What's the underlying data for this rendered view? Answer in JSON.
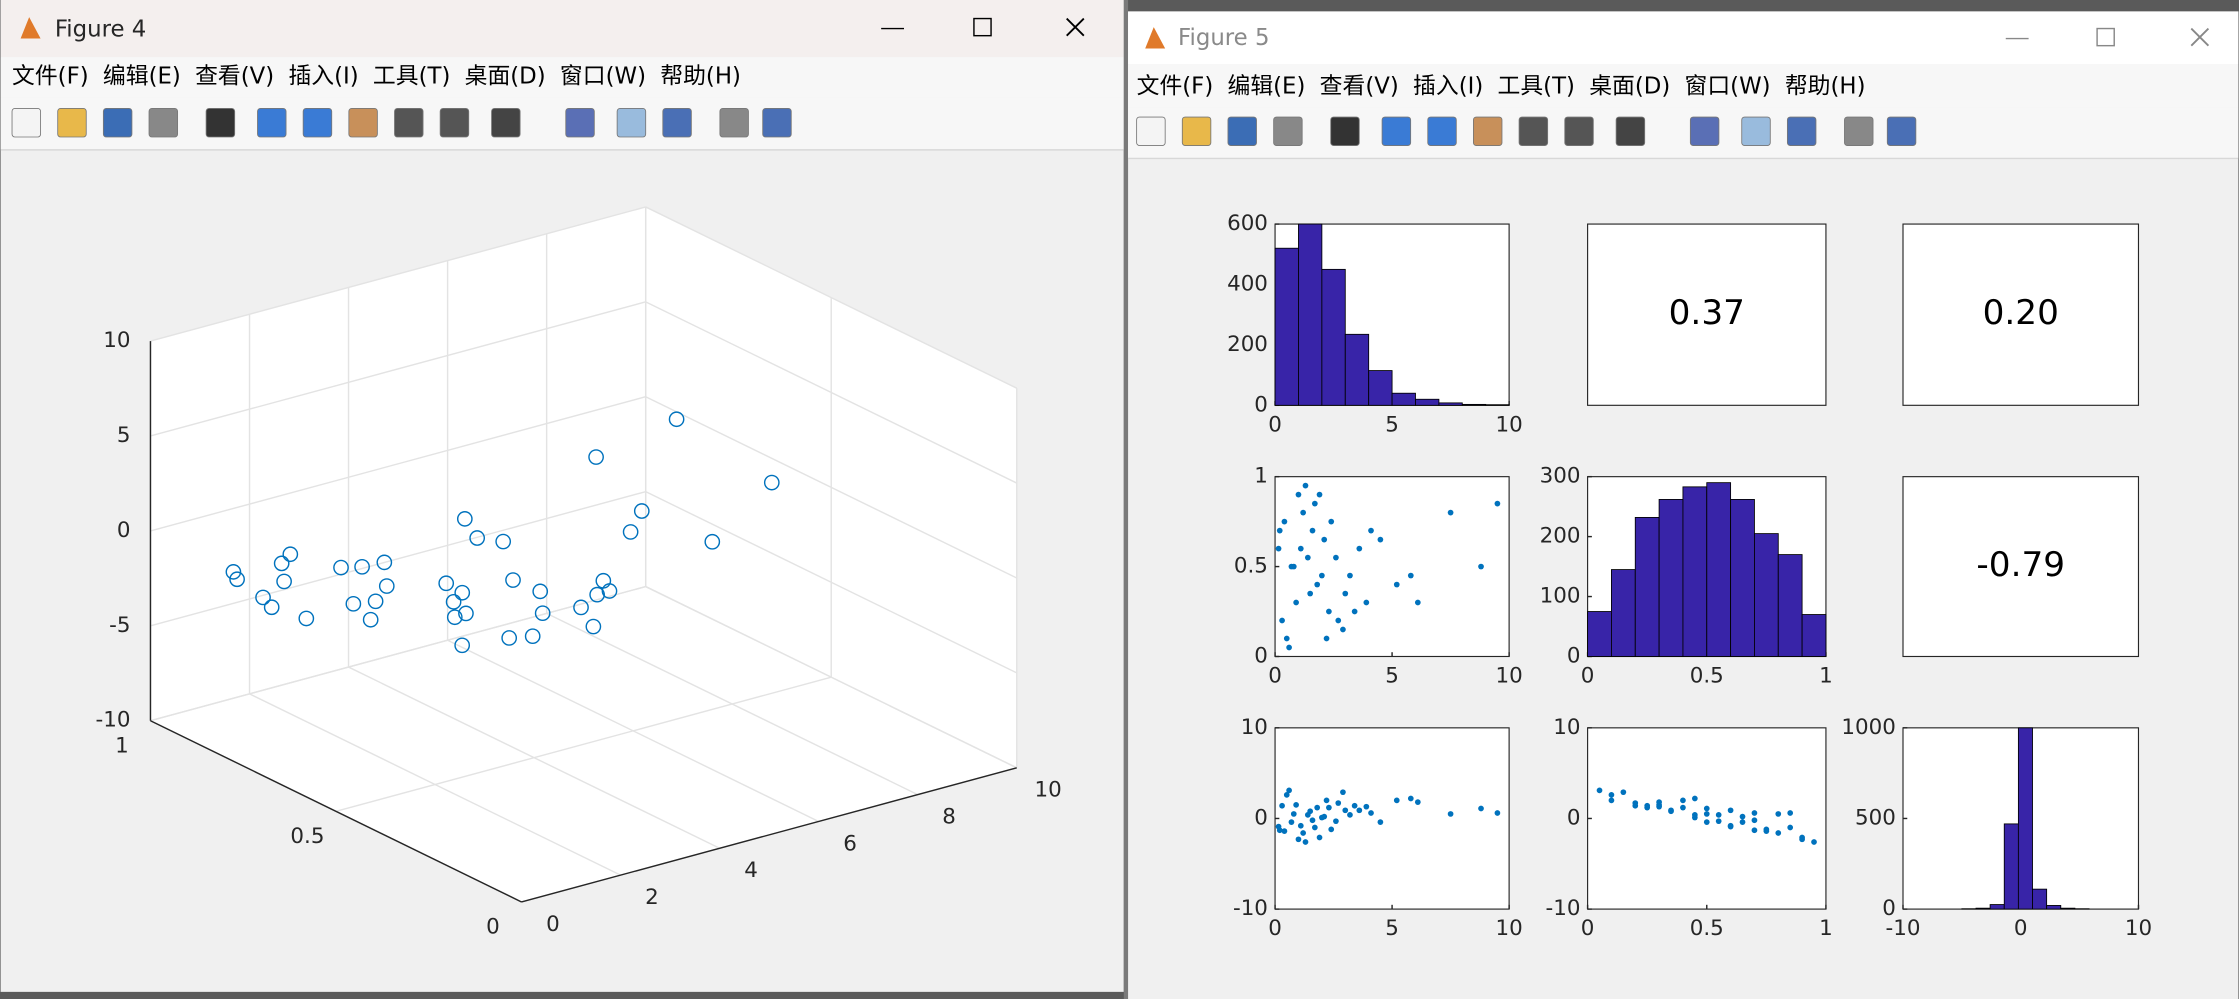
{
  "figure4": {
    "title": "Figure 4",
    "menu": [
      "文件(F)",
      "编辑(E)",
      "查看(V)",
      "插入(I)",
      "工具(T)",
      "桌面(D)",
      "窗口(W)",
      "帮助(H)"
    ],
    "chart": {
      "type": "scatter3d",
      "color": "#0072bd",
      "grid": true,
      "xlim": [
        0,
        10
      ],
      "xticks": [
        0,
        2,
        4,
        6,
        8,
        10
      ],
      "ylim": [
        0,
        1
      ],
      "yticks": [
        0,
        0.5,
        1
      ],
      "zlim": [
        -10,
        10
      ],
      "zticks": [
        -10,
        -5,
        0,
        5,
        10
      ],
      "x": [
        0.3,
        0.8,
        1.2,
        1.5,
        2.1,
        0.5,
        3.2,
        1.9,
        2.6,
        0.9,
        4.1,
        1.1,
        2.3,
        0.4,
        5.2,
        1.7,
        2.9,
        0.7,
        3.6,
        1.3,
        6.1,
        2.0,
        0.2,
        2.7,
        1.4,
        7.5,
        3.0,
        0.6,
        4.5,
        1.8,
        8.8,
        2.4,
        1.0,
        3.4,
        0.15,
        5.8,
        2.2,
        1.6,
        9.5,
        3.9
      ],
      "y": [
        0.2,
        0.5,
        0.8,
        0.35,
        0.65,
        0.1,
        0.45,
        0.9,
        0.55,
        0.3,
        0.7,
        0.6,
        0.25,
        0.75,
        0.4,
        0.85,
        0.15,
        0.5,
        0.6,
        0.95,
        0.3,
        0.45,
        0.7,
        0.2,
        0.55,
        0.8,
        0.35,
        0.05,
        0.65,
        0.4,
        0.5,
        0.75,
        0.9,
        0.25,
        0.6,
        0.45,
        0.1,
        0.7,
        0.85,
        0.3
      ],
      "z": [
        1.4,
        0.5,
        -1.6,
        0.8,
        0.2,
        2.6,
        0.4,
        -2.1,
        -0.3,
        1.5,
        0.6,
        -0.8,
        1.2,
        -1.4,
        2.0,
        -1.0,
        2.9,
        -0.4,
        0.9,
        -2.6,
        1.8,
        0.1,
        -1.3,
        1.7,
        0.4,
        0.5,
        0.9,
        3.1,
        -0.4,
        1.2,
        1.1,
        -1.2,
        -2.3,
        1.4,
        -0.9,
        2.2,
        2.0,
        -0.2,
        0.6,
        1.3
      ]
    }
  },
  "figure5": {
    "title": "Figure 5",
    "menu": [
      "文件(F)",
      "编辑(E)",
      "查看(V)",
      "插入(I)",
      "工具(T)",
      "桌面(D)",
      "窗口(W)",
      "帮助(H)"
    ],
    "charts": [
      {
        "type": "hist",
        "color": "#3824a8",
        "bins": [
          0,
          1,
          2,
          3,
          4,
          5,
          6,
          7,
          8,
          9,
          10
        ],
        "counts": [
          520,
          600,
          450,
          235,
          115,
          40,
          20,
          8,
          3,
          2
        ],
        "xlim": [
          0,
          10
        ],
        "xticks": [
          0,
          5,
          10
        ],
        "ylim": [
          0,
          600
        ],
        "yticks": [
          0,
          200,
          400,
          600
        ]
      },
      {
        "type": "text",
        "text": "0.37"
      },
      {
        "type": "text",
        "text": "0.20"
      },
      {
        "type": "scatter",
        "color": "#0072bd",
        "xlim": [
          0,
          10
        ],
        "xticks": [
          0,
          5,
          10
        ],
        "ylim": [
          0,
          1
        ],
        "yticks": [
          0,
          0.5,
          1
        ],
        "x": [
          0.3,
          0.8,
          1.2,
          1.5,
          2.1,
          0.5,
          3.2,
          1.9,
          2.6,
          0.9,
          4.1,
          1.1,
          2.3,
          0.4,
          5.2,
          1.7,
          2.9,
          0.7,
          3.6,
          1.3,
          6.1,
          2.0,
          0.2,
          2.7,
          1.4,
          7.5,
          3.0,
          0.6,
          4.5,
          1.8,
          8.8,
          2.4,
          1.0,
          3.4,
          0.15,
          5.8,
          2.2,
          1.6,
          9.5,
          3.9
        ],
        "y": [
          0.2,
          0.5,
          0.8,
          0.35,
          0.65,
          0.1,
          0.45,
          0.9,
          0.55,
          0.3,
          0.7,
          0.6,
          0.25,
          0.75,
          0.4,
          0.85,
          0.15,
          0.5,
          0.6,
          0.95,
          0.3,
          0.45,
          0.7,
          0.2,
          0.55,
          0.8,
          0.35,
          0.05,
          0.65,
          0.4,
          0.5,
          0.75,
          0.9,
          0.25,
          0.6,
          0.45,
          0.1,
          0.7,
          0.85,
          0.3
        ]
      },
      {
        "type": "hist",
        "color": "#3824a8",
        "bins": [
          0,
          0.1,
          0.2,
          0.3,
          0.4,
          0.5,
          0.6,
          0.7,
          0.8,
          0.9,
          1
        ],
        "counts": [
          75,
          145,
          232,
          262,
          283,
          290,
          262,
          205,
          170,
          70
        ],
        "xlim": [
          0,
          1
        ],
        "xticks": [
          0,
          0.5,
          1
        ],
        "ylim": [
          0,
          300
        ],
        "yticks": [
          0,
          100,
          200,
          300
        ]
      },
      {
        "type": "text",
        "text": "-0.79"
      },
      {
        "type": "scatter",
        "color": "#0072bd",
        "xlim": [
          0,
          10
        ],
        "xticks": [
          0,
          5,
          10
        ],
        "ylim": [
          -10,
          10
        ],
        "yticks": [
          -10,
          0,
          10
        ],
        "x": [
          0.3,
          0.8,
          1.2,
          1.5,
          2.1,
          0.5,
          3.2,
          1.9,
          2.6,
          0.9,
          4.1,
          1.1,
          2.3,
          0.4,
          5.2,
          1.7,
          2.9,
          0.7,
          3.6,
          1.3,
          6.1,
          2.0,
          0.2,
          2.7,
          1.4,
          7.5,
          3.0,
          0.6,
          4.5,
          1.8,
          8.8,
          2.4,
          1.0,
          3.4,
          0.15,
          5.8,
          2.2,
          1.6,
          9.5,
          3.9
        ],
        "y": [
          1.4,
          0.5,
          -1.6,
          0.8,
          0.2,
          2.6,
          0.4,
          -2.1,
          -0.3,
          1.5,
          0.6,
          -0.8,
          1.2,
          -1.4,
          2.0,
          -1.0,
          2.9,
          -0.4,
          0.9,
          -2.6,
          1.8,
          0.1,
          -1.3,
          1.7,
          0.4,
          0.5,
          0.9,
          3.1,
          -0.4,
          1.2,
          1.1,
          -1.2,
          -2.3,
          1.4,
          -0.9,
          2.2,
          2.0,
          -0.2,
          0.6,
          1.3
        ]
      },
      {
        "type": "scatter",
        "color": "#0072bd",
        "xlim": [
          0,
          1
        ],
        "xticks": [
          0,
          0.5,
          1
        ],
        "ylim": [
          -10,
          10
        ],
        "yticks": [
          -10,
          0,
          10
        ],
        "x": [
          0.2,
          0.5,
          0.8,
          0.35,
          0.65,
          0.1,
          0.45,
          0.9,
          0.55,
          0.3,
          0.7,
          0.6,
          0.25,
          0.75,
          0.4,
          0.85,
          0.15,
          0.5,
          0.6,
          0.95,
          0.3,
          0.45,
          0.7,
          0.2,
          0.55,
          0.8,
          0.35,
          0.05,
          0.65,
          0.4,
          0.5,
          0.75,
          0.9,
          0.25,
          0.6,
          0.45,
          0.1,
          0.7,
          0.85,
          0.3
        ],
        "y": [
          1.4,
          0.5,
          -1.6,
          0.8,
          0.2,
          2.6,
          0.4,
          -2.1,
          -0.3,
          1.5,
          0.6,
          -0.8,
          1.2,
          -1.4,
          2.0,
          -1.0,
          2.9,
          -0.4,
          0.9,
          -2.6,
          1.8,
          0.1,
          -1.3,
          1.7,
          0.4,
          0.5,
          0.9,
          3.1,
          -0.4,
          1.2,
          1.1,
          -1.2,
          -2.3,
          1.4,
          -0.9,
          2.2,
          2.0,
          -0.2,
          0.6,
          1.3
        ]
      },
      {
        "type": "hist",
        "color": "#3824a8",
        "bins": [
          -5,
          -3.8,
          -2.6,
          -1.4,
          -0.2,
          1,
          2.2,
          3.4,
          4.6,
          5.8
        ],
        "counts": [
          2,
          5,
          25,
          470,
          1000,
          110,
          20,
          5,
          2
        ],
        "xlim": [
          -10,
          10
        ],
        "xticks": [
          -10,
          0,
          10
        ],
        "ylim": [
          0,
          1000
        ],
        "yticks": [
          0,
          500,
          1000
        ]
      }
    ]
  }
}
